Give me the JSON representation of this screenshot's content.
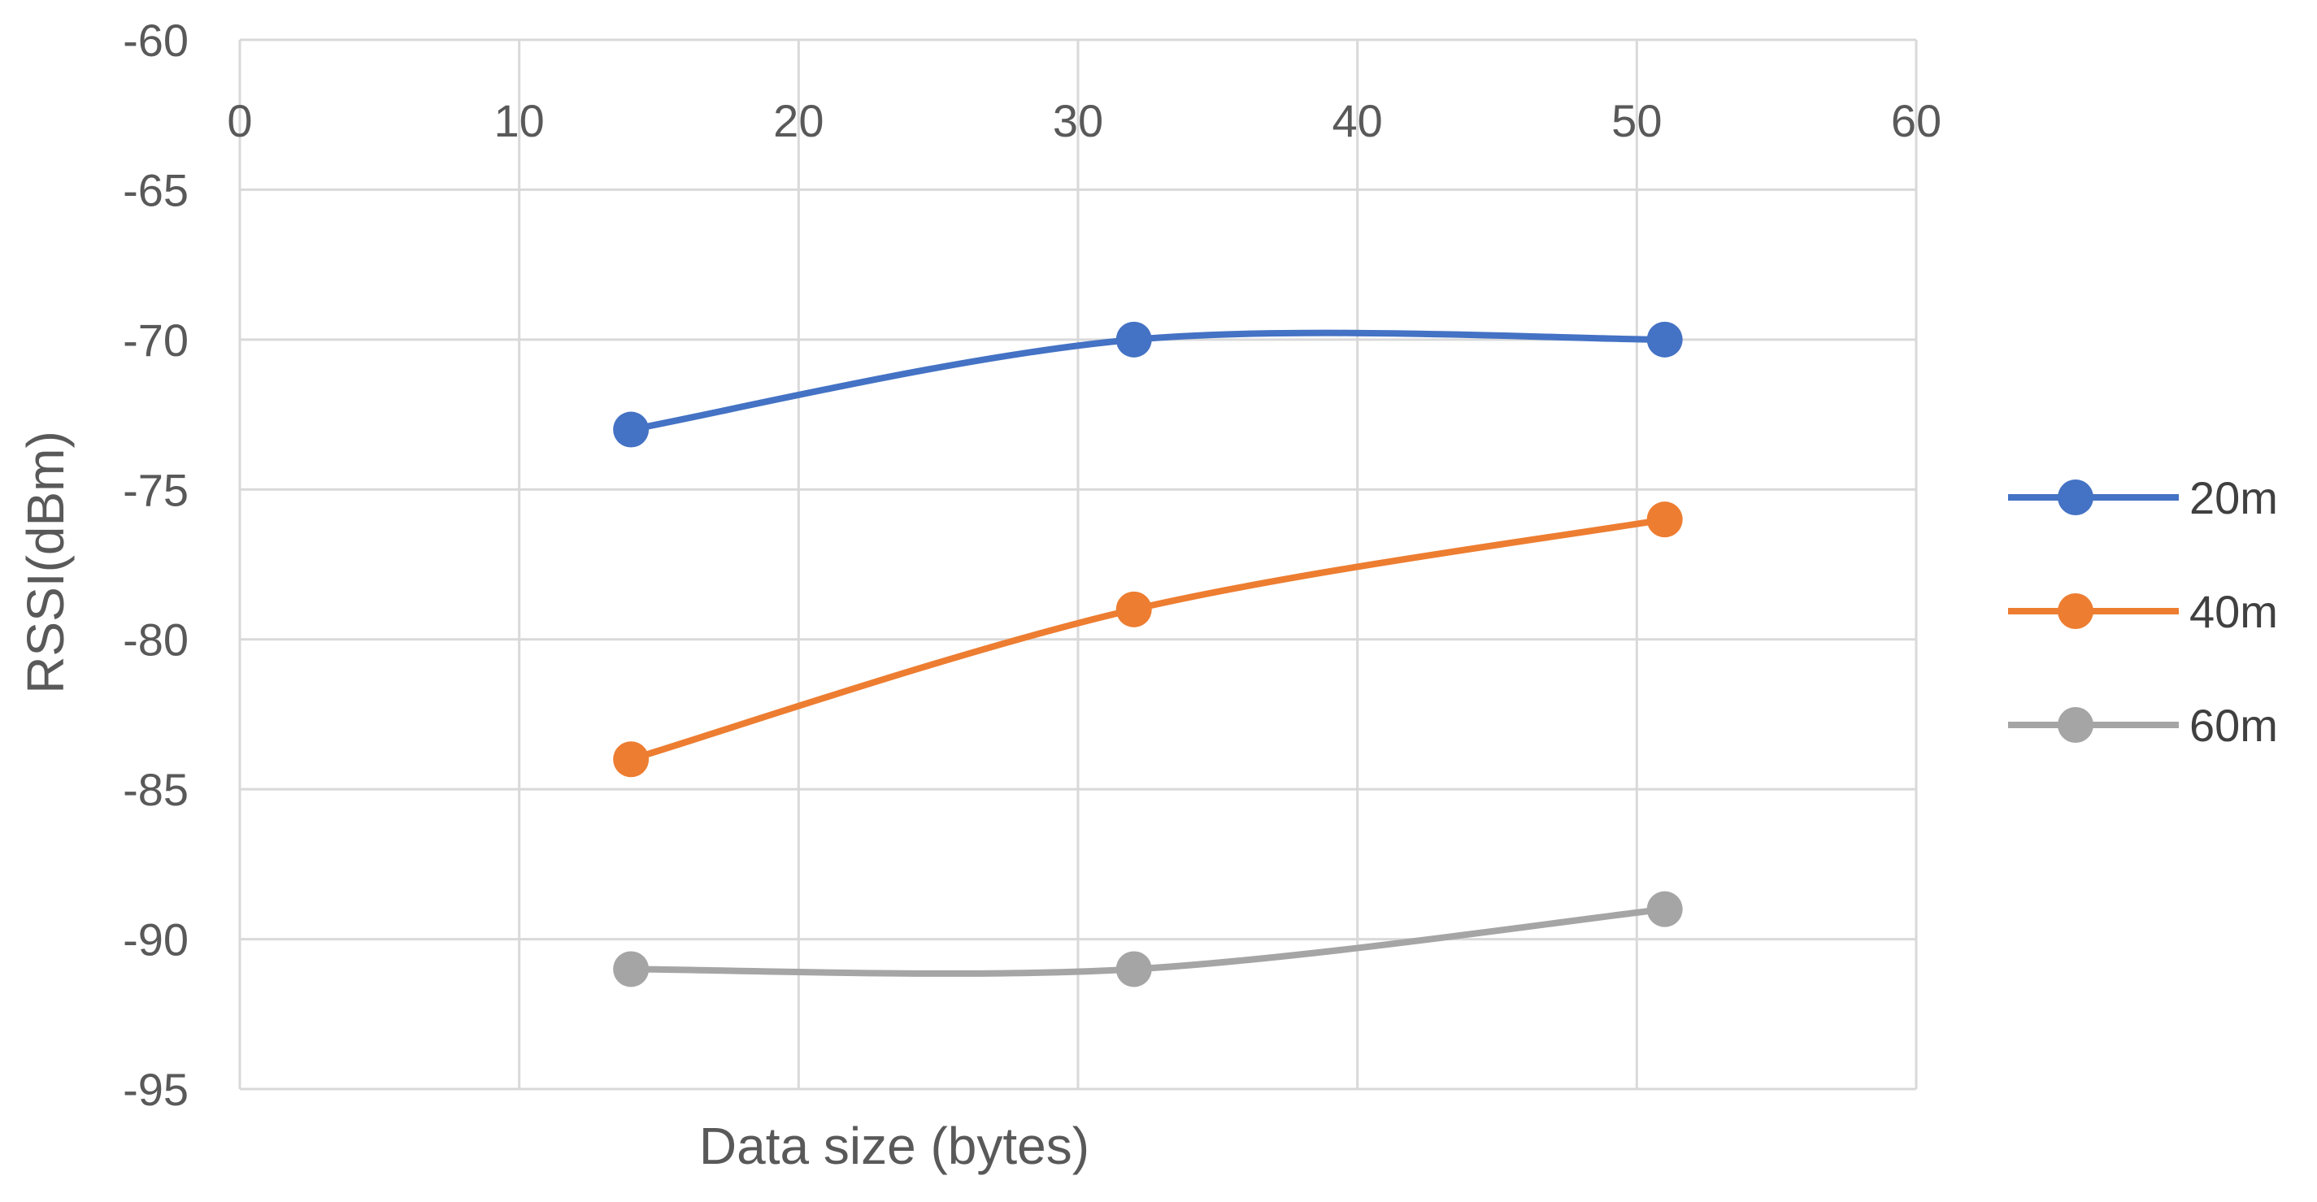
{
  "chart_data": {
    "type": "line",
    "title": "",
    "xlabel": "Data size (bytes)",
    "ylabel": "RSSI(dBm)",
    "xlim": [
      0,
      60
    ],
    "ylim": [
      -95,
      -60
    ],
    "x_ticks": [
      "0",
      "10",
      "20",
      "30",
      "40",
      "50",
      "60"
    ],
    "y_ticks": [
      "-60",
      "-65",
      "-70",
      "-75",
      "-80",
      "-85",
      "-90",
      "-95"
    ],
    "x_tick_values": [
      0,
      10,
      20,
      30,
      40,
      50,
      60
    ],
    "y_tick_values": [
      -60,
      -65,
      -70,
      -75,
      -80,
      -85,
      -90,
      -95
    ],
    "grid": true,
    "smooth": true,
    "legend_position": "right",
    "x_axis_labels_position": "top",
    "series": [
      {
        "name": "20m",
        "color": "#4472C4",
        "x": [
          14,
          32,
          51
        ],
        "values": [
          -73,
          -70,
          -70
        ]
      },
      {
        "name": "40m",
        "color": "#ED7D31",
        "x": [
          14,
          32,
          51
        ],
        "values": [
          -84,
          -79,
          -76
        ]
      },
      {
        "name": "60m",
        "color": "#A5A5A5",
        "x": [
          14,
          32,
          51
        ],
        "values": [
          -91,
          -91,
          -89
        ]
      }
    ]
  }
}
